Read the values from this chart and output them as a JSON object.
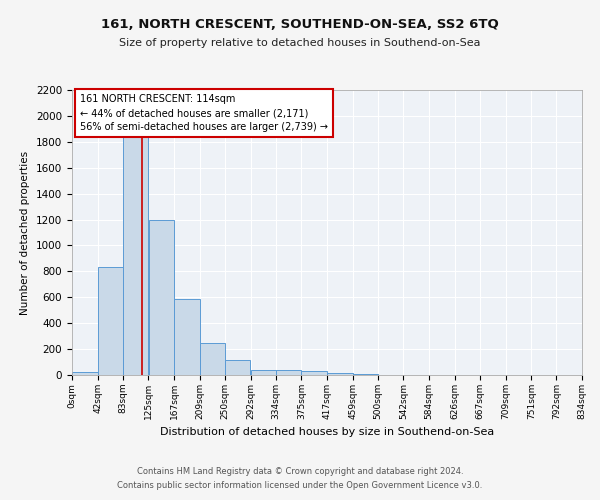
{
  "title": "161, NORTH CRESCENT, SOUTHEND-ON-SEA, SS2 6TQ",
  "subtitle": "Size of property relative to detached houses in Southend-on-Sea",
  "xlabel": "Distribution of detached houses by size in Southend-on-Sea",
  "ylabel": "Number of detached properties",
  "annotation_line1": "161 NORTH CRESCENT: 114sqm",
  "annotation_line2": "← 44% of detached houses are smaller (2,171)",
  "annotation_line3": "56% of semi-detached houses are larger (2,739) →",
  "marker_value": 114,
  "bar_edges": [
    0,
    42,
    83,
    125,
    167,
    209,
    250,
    292,
    334,
    375,
    417,
    459,
    500,
    542,
    584,
    626,
    667,
    709,
    751,
    792,
    834
  ],
  "bar_heights": [
    20,
    830,
    1850,
    1200,
    590,
    250,
    115,
    40,
    35,
    30,
    15,
    5,
    2,
    1,
    1,
    0,
    0,
    0,
    0,
    0
  ],
  "bar_color": "#c9d9e8",
  "bar_edge_color": "#5b9bd5",
  "marker_color": "#cc0000",
  "annotation_box_color": "#cc0000",
  "background_color": "#eef2f7",
  "grid_color": "#ffffff",
  "fig_background": "#f5f5f5",
  "ylim": [
    0,
    2200
  ],
  "yticks": [
    0,
    200,
    400,
    600,
    800,
    1000,
    1200,
    1400,
    1600,
    1800,
    2000,
    2200
  ],
  "footer_line1": "Contains HM Land Registry data © Crown copyright and database right 2024.",
  "footer_line2": "Contains public sector information licensed under the Open Government Licence v3.0."
}
